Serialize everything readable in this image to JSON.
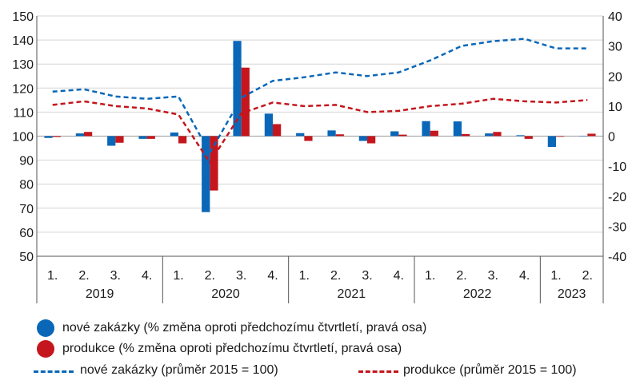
{
  "chart_data": {
    "type": "bar",
    "categories": [
      "1.",
      "2.",
      "3.",
      "4.",
      "1.",
      "2.",
      "3.",
      "4.",
      "1.",
      "2.",
      "3.",
      "4.",
      "1.",
      "2.",
      "3.",
      "4.",
      "1.",
      "2."
    ],
    "years": [
      {
        "label": "2019",
        "span": 4
      },
      {
        "label": "2020",
        "span": 4
      },
      {
        "label": "2021",
        "span": 4
      },
      {
        "label": "2022",
        "span": 4
      },
      {
        "label": "2023",
        "span": 2
      }
    ],
    "ylim_left": [
      50,
      150
    ],
    "yticks_left": [
      50,
      60,
      70,
      80,
      90,
      100,
      110,
      120,
      130,
      140,
      150
    ],
    "ylim_right": [
      -40,
      40
    ],
    "yticks_right": [
      -40,
      -30,
      -20,
      -10,
      0,
      10,
      20,
      30,
      40
    ],
    "series": [
      {
        "name": "nové zakázky (% změna oproti předchozímu čtvrtletí, pravá osa)",
        "type": "bar",
        "axis": "right",
        "color": "#0a67b8",
        "values": [
          -0.6,
          0.9,
          -3.2,
          -0.9,
          1.2,
          -25.3,
          31.7,
          7.5,
          1.0,
          1.9,
          -1.6,
          1.6,
          5.0,
          4.9,
          0.9,
          0.3,
          -3.6,
          -0.1
        ]
      },
      {
        "name": "produkce  (% změna oproti předchozímu čtvrtletí, pravá osa)",
        "type": "bar",
        "axis": "right",
        "color": "#c4161c",
        "values": [
          -0.3,
          1.4,
          -2.2,
          -0.9,
          -2.4,
          -18.1,
          22.8,
          4.0,
          -1.6,
          0.6,
          -2.4,
          0.5,
          1.8,
          0.7,
          1.4,
          -0.9,
          -0.2,
          0.8
        ]
      },
      {
        "name": "nové zakázky (průměr 2015 = 100)",
        "type": "line",
        "axis": "left",
        "color": "#0a67b8",
        "values": [
          118.5,
          119.5,
          116.5,
          115.5,
          116.5,
          93.0,
          116.0,
          123.0,
          124.5,
          126.5,
          125.0,
          126.5,
          131.5,
          137.5,
          139.5,
          140.5,
          136.5,
          136.5
        ]
      },
      {
        "name": "produkce (průměr 2015 = 100)",
        "type": "line",
        "axis": "left",
        "color": "#c4161c",
        "values": [
          113.0,
          114.5,
          112.5,
          111.5,
          109.0,
          89.0,
          109.5,
          114.0,
          112.5,
          113.0,
          110.0,
          110.5,
          112.5,
          113.5,
          115.5,
          114.5,
          114.0,
          115.0
        ]
      }
    ],
    "legend": {
      "bar_orders": "nové zakázky (% změna oproti předchozímu čtvrtletí, pravá osa)",
      "bar_prod": "produkce  (% změna oproti předchozímu čtvrtletí, pravá osa)",
      "line_orders": "nové zakázky (průměr 2015 = 100)",
      "line_prod": "produkce (průměr 2015 = 100)"
    },
    "grid": "horizontal",
    "legend_placement": "bottom"
  }
}
